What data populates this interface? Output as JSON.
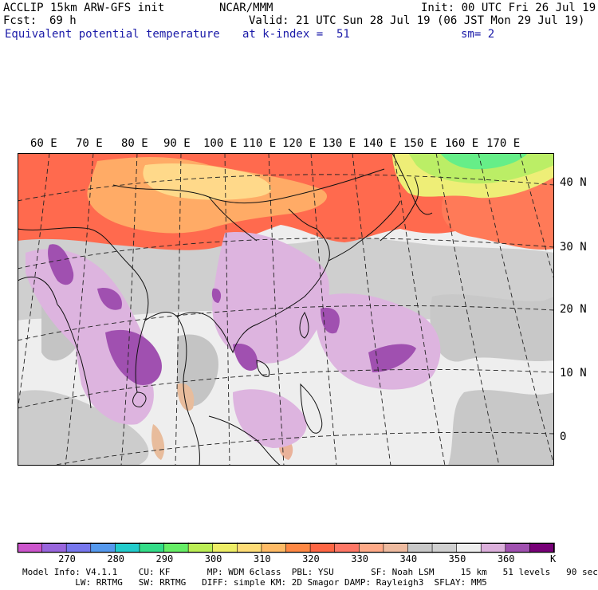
{
  "header": {
    "model": "ACCLIP 15km ARW-GFS init",
    "org": "NCAR/MMM",
    "init": "Init: 00 UTC Fri 26 Jul 19",
    "fcst_label": "Fcst:",
    "fcst_value": "69 h",
    "valid": "Valid: 21 UTC Sun 28 Jul 19 (06 JST Mon 29 Jul 19)",
    "field": "Equivalent potential temperature",
    "level": "at k-index =  51",
    "smooth": "sm= 2"
  },
  "map": {
    "lon_labels": [
      "60 E",
      "70 E",
      "80 E",
      "90 E",
      "100 E",
      "110 E",
      "120 E",
      "130 E",
      "140 E",
      "150 E",
      "160 E",
      "170 E"
    ],
    "lat_labels": [
      "40 N",
      "30 N",
      "20 N",
      "10 N",
      "0"
    ]
  },
  "colorbar": {
    "unit": "K",
    "tick_labels": [
      "270",
      "280",
      "290",
      "300",
      "310",
      "320",
      "330",
      "340",
      "350",
      "360"
    ],
    "colors": [
      "#cc55cc",
      "#9966dd",
      "#7777ee",
      "#5599ee",
      "#22cccc",
      "#33dd88",
      "#66ee66",
      "#bbee55",
      "#eeee66",
      "#ffdd77",
      "#ffbb66",
      "#ff8844",
      "#ff6644",
      "#ff7766",
      "#ffaa88",
      "#eebba0",
      "#c8c8c8",
      "#d0d0d0",
      "#eeeeee",
      "#dcb0dc",
      "#a050b0",
      "#770077"
    ]
  },
  "footer": {
    "line1": "Model Info: V4.1.1    CU: KF       MP: WDM 6class  PBL: YSU       SF: Noah LSM     15 km   51 levels   90 sec",
    "line2": "          LW: RRTMG   SW: RRTMG   DIFF: simple KM: 2D Smagor DAMP: Rayleigh3  SFLAY: MM5"
  }
}
